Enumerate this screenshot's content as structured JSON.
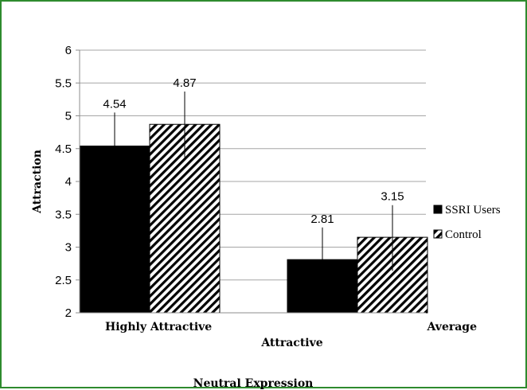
{
  "chart_data": {
    "type": "bar",
    "title": "",
    "ylabel": "Attraction",
    "xlabel": "Attractive",
    "xlabel_secondary": "Neutral Expression",
    "categories": [
      "Highly Attractive",
      "Average"
    ],
    "series": [
      {
        "name": "SSRI Users",
        "values": [
          4.54,
          2.81
        ],
        "fill": "solid",
        "color": "#000000"
      },
      {
        "name": "Control",
        "values": [
          4.87,
          3.15
        ],
        "fill": "diagonal-hatch",
        "color": "#000000"
      }
    ],
    "data_labels": [
      [
        "4.54",
        "2.81"
      ],
      [
        "4.87",
        "3.15"
      ]
    ],
    "error_bar_bounds": [
      [
        [
          4.05,
          5.05
        ],
        [
          2.3,
          3.3
        ]
      ],
      [
        [
          4.37,
          5.37
        ],
        [
          2.64,
          3.64
        ]
      ]
    ],
    "ylim": [
      2,
      6
    ],
    "yticks": [
      "2",
      "2.5",
      "3",
      "3.5",
      "4",
      "4.5",
      "5",
      "5.5",
      "6"
    ],
    "grid": true,
    "legend_position": "right"
  },
  "colors": {
    "border": "#2e8b2e",
    "grid": "#a6a6a6",
    "axis": "#8c8c8c",
    "bars": "#000000"
  }
}
